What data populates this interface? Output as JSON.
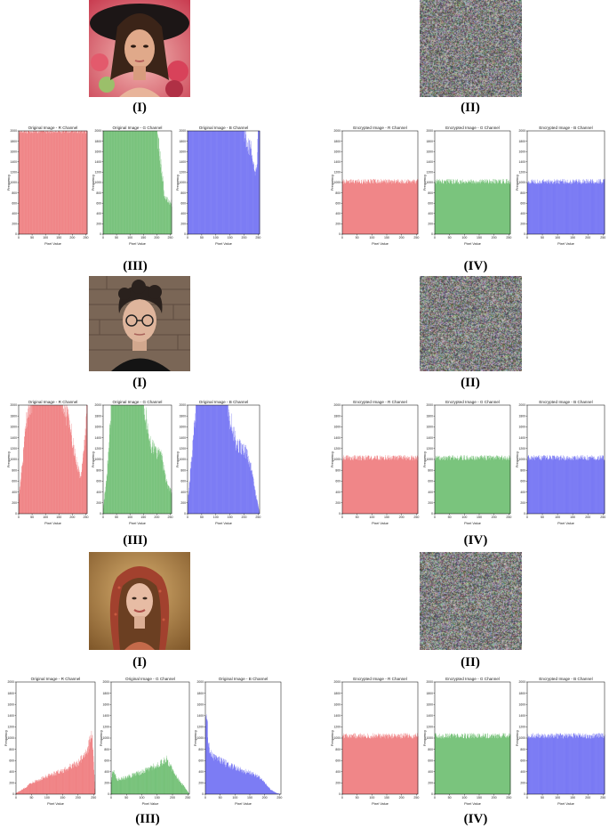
{
  "labels": {
    "i": "(I)",
    "ii": "(II)",
    "iii": "(III)",
    "iv": "(IV)"
  },
  "colors": {
    "red": "#e8474a",
    "green": "#35a43a",
    "blue": "#3838ee"
  },
  "photos": [
    {
      "subject": "woman with black hat among flowers",
      "palette": [
        "#c73a4a",
        "#2a1d1a",
        "#d9a07c",
        "#f0c8b0"
      ]
    },
    {
      "subject": "young man with curly hair and glasses",
      "palette": [
        "#6b5a4a",
        "#2b2522",
        "#d8b8a0",
        "#1a1a1a"
      ]
    },
    {
      "subject": "woman with red patterned headscarf",
      "palette": [
        "#b58545",
        "#9a3d2a",
        "#e2b49a",
        "#5a3a22"
      ]
    }
  ],
  "chart_data": [
    {
      "type": "bar",
      "panel": "row1-original",
      "xlabel": "Pixel Value",
      "ylabel": "Frequency",
      "xlim": [
        0,
        255
      ],
      "ylim": [
        0,
        2000
      ],
      "xticks": [
        "0",
        "50",
        "100",
        "150",
        "200",
        "250"
      ],
      "yticks": [
        "0",
        "200",
        "400",
        "600",
        "800",
        "1000",
        "1200",
        "1400",
        "1600",
        "1800",
        "2000"
      ],
      "series": [
        {
          "name": "Original Image - R Channel",
          "color": "#e8474a",
          "x": [
            0,
            50,
            100,
            150,
            200,
            250,
            255
          ],
          "y": [
            2000,
            2000,
            2000,
            2000,
            2000,
            2000,
            2000
          ]
        },
        {
          "name": "Original Image - G Channel",
          "color": "#35a43a",
          "x": [
            0,
            50,
            100,
            150,
            200,
            215,
            230,
            255
          ],
          "y": [
            2000,
            2000,
            2000,
            2000,
            2000,
            1300,
            700,
            600
          ]
        },
        {
          "name": "Original Image - B Channel",
          "color": "#3838ee",
          "x": [
            0,
            50,
            100,
            150,
            200,
            225,
            240,
            245,
            250,
            255
          ],
          "y": [
            2000,
            2000,
            2000,
            2000,
            2000,
            1600,
            1150,
            1350,
            2000,
            2000
          ]
        }
      ]
    },
    {
      "type": "bar",
      "panel": "row1-encrypted",
      "xlabel": "Pixel Value",
      "ylabel": "Frequency",
      "xlim": [
        0,
        255
      ],
      "ylim": [
        0,
        2000
      ],
      "xticks": [
        "0",
        "50",
        "100",
        "150",
        "200",
        "250"
      ],
      "yticks": [
        "0",
        "200",
        "400",
        "600",
        "800",
        "1000",
        "1200",
        "1400",
        "1600",
        "1800",
        "2000"
      ],
      "series": [
        {
          "name": "Encrypted Image - R Channel",
          "color": "#e8474a",
          "x": [
            0,
            255
          ],
          "y": [
            1020,
            1020
          ]
        },
        {
          "name": "Encrypted Image - G Channel",
          "color": "#35a43a",
          "x": [
            0,
            255
          ],
          "y": [
            1020,
            1020
          ]
        },
        {
          "name": "Encrypted Image - B Channel",
          "color": "#3838ee",
          "x": [
            0,
            255
          ],
          "y": [
            1020,
            1020
          ]
        }
      ]
    },
    {
      "type": "bar",
      "panel": "row2-original",
      "xlabel": "Pixel Value",
      "ylabel": "Frequency",
      "xlim": [
        0,
        255
      ],
      "ylim": [
        0,
        2000
      ],
      "xticks": [
        "0",
        "50",
        "100",
        "150",
        "200",
        "250"
      ],
      "yticks": [
        "0",
        "200",
        "400",
        "600",
        "800",
        "1000",
        "1200",
        "1400",
        "1600",
        "1800",
        "2000"
      ],
      "series": [
        {
          "name": "Original Image - R Channel",
          "color": "#e8474a",
          "x": [
            0,
            15,
            30,
            50,
            100,
            160,
            190,
            210,
            230,
            245,
            255
          ],
          "y": [
            300,
            1000,
            1800,
            2000,
            2000,
            2000,
            1700,
            1050,
            650,
            1300,
            2000
          ]
        },
        {
          "name": "Original Image - G Channel",
          "color": "#35a43a",
          "x": [
            0,
            15,
            30,
            50,
            150,
            175,
            195,
            215,
            240,
            255
          ],
          "y": [
            100,
            800,
            2000,
            2000,
            2000,
            1300,
            1150,
            1100,
            500,
            400
          ]
        },
        {
          "name": "Original Image - B Channel",
          "color": "#3838ee",
          "x": [
            0,
            15,
            30,
            50,
            140,
            170,
            205,
            225,
            240,
            255
          ],
          "y": [
            200,
            1100,
            2000,
            2000,
            2000,
            1300,
            1150,
            850,
            400,
            0
          ]
        }
      ]
    },
    {
      "type": "bar",
      "panel": "row2-encrypted",
      "xlabel": "Pixel Value",
      "ylabel": "Frequency",
      "xlim": [
        0,
        255
      ],
      "ylim": [
        0,
        2000
      ],
      "xticks": [
        "0",
        "50",
        "100",
        "150",
        "200",
        "250"
      ],
      "yticks": [
        "0",
        "200",
        "400",
        "600",
        "800",
        "1000",
        "1200",
        "1400",
        "1600",
        "1800",
        "2000"
      ],
      "series": [
        {
          "name": "Encrypted Image - R Channel",
          "color": "#e8474a",
          "x": [
            0,
            255
          ],
          "y": [
            1030,
            1030
          ]
        },
        {
          "name": "Encrypted Image - G Channel",
          "color": "#35a43a",
          "x": [
            0,
            255
          ],
          "y": [
            1030,
            1030
          ]
        },
        {
          "name": "Encrypted Image - B Channel",
          "color": "#3838ee",
          "x": [
            0,
            255
          ],
          "y": [
            1030,
            1030
          ]
        }
      ]
    },
    {
      "type": "bar",
      "panel": "row3-original",
      "xlabel": "Pixel Value",
      "ylabel": "Frequency",
      "xlim": [
        0,
        255
      ],
      "ylim": [
        0,
        2000
      ],
      "xticks": [
        "0",
        "50",
        "100",
        "150",
        "200",
        "250"
      ],
      "yticks": [
        "0",
        "200",
        "400",
        "600",
        "800",
        "1000",
        "1200",
        "1400",
        "1600",
        "1800",
        "2000"
      ],
      "series": [
        {
          "name": "Original Image - R Channel",
          "color": "#e8474a",
          "x": [
            0,
            20,
            50,
            100,
            150,
            200,
            230,
            245,
            255
          ],
          "y": [
            20,
            80,
            200,
            320,
            420,
            560,
            780,
            1080,
            0
          ]
        },
        {
          "name": "Original Image - G Channel",
          "color": "#35a43a",
          "x": [
            0,
            5,
            20,
            50,
            100,
            150,
            180,
            200,
            220,
            240,
            255
          ],
          "y": [
            200,
            430,
            260,
            300,
            400,
            520,
            620,
            430,
            250,
            120,
            0
          ]
        },
        {
          "name": "Original Image - B Channel",
          "color": "#3838ee",
          "x": [
            0,
            4,
            10,
            20,
            40,
            80,
            120,
            150,
            180,
            200,
            220,
            240,
            255
          ],
          "y": [
            1200,
            1450,
            900,
            700,
            620,
            520,
            430,
            380,
            320,
            200,
            80,
            20,
            0
          ]
        }
      ]
    },
    {
      "type": "bar",
      "panel": "row3-encrypted",
      "xlabel": "Pixel Value",
      "ylabel": "Frequency",
      "xlim": [
        0,
        255
      ],
      "ylim": [
        0,
        2000
      ],
      "xticks": [
        "0",
        "50",
        "100",
        "150",
        "200",
        "250"
      ],
      "yticks": [
        "0",
        "200",
        "400",
        "600",
        "800",
        "1000",
        "1200",
        "1400",
        "1600",
        "1800",
        "2000"
      ],
      "series": [
        {
          "name": "Encrypted Image - R Channel",
          "color": "#e8474a",
          "x": [
            0,
            255
          ],
          "y": [
            1040,
            1040
          ]
        },
        {
          "name": "Encrypted Image - G Channel",
          "color": "#35a43a",
          "x": [
            0,
            255
          ],
          "y": [
            1040,
            1040
          ]
        },
        {
          "name": "Encrypted Image - B Channel",
          "color": "#3838ee",
          "x": [
            0,
            255
          ],
          "y": [
            1040,
            1040
          ]
        }
      ]
    }
  ]
}
